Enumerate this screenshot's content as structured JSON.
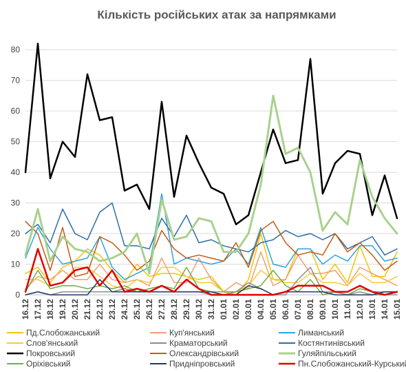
{
  "chart_data": {
    "type": "line",
    "title": "Кількість російських атак за напрямками",
    "xlabel": "",
    "ylabel": "",
    "ylim": [
      0,
      85
    ],
    "yticks": [
      0,
      10,
      20,
      30,
      40,
      50,
      60,
      70,
      80
    ],
    "grid": true,
    "legend_position": "bottom",
    "categories": [
      "16.12",
      "17.12",
      "18.12",
      "19.12",
      "20.12",
      "21.12",
      "22.12",
      "23.12",
      "24.12",
      "25.12",
      "26.12",
      "27.12",
      "28.12",
      "29.12",
      "30.12",
      "31.12",
      "01.01",
      "02.01",
      "03.01",
      "04.01",
      "05.01",
      "06.01",
      "07.01",
      "08.01",
      "09.01",
      "10.01",
      "11.01",
      "12.01",
      "13.01",
      "14.01",
      "15.01"
    ],
    "x_tick_labels": [
      "16.12",
      "17.12",
      "18.12",
      "19.12",
      "20.12",
      "21.12",
      "22.12",
      "23.12",
      "24.12",
      "25.12",
      "26.12",
      "27.12",
      "28.12",
      "29.12",
      "30.12",
      "31.12",
      "01.01",
      "02.01",
      "03.01",
      "04.01",
      "05.01",
      "06.01",
      "07.01",
      "08.01",
      "09.01",
      "10.01",
      "11.01",
      "12.01",
      "13.01",
      "14.01",
      "15.01"
    ],
    "series": [
      {
        "name": "Пд.Слобожанський",
        "color": "#f5c400",
        "width": 1.5,
        "values": [
          7,
          9,
          4,
          9,
          11,
          15,
          13,
          8,
          4,
          10,
          6,
          7,
          7,
          6,
          5,
          6,
          1,
          0,
          5,
          20,
          5,
          5,
          15,
          15,
          5,
          10,
          4,
          16,
          6,
          6,
          14
        ]
      },
      {
        "name": "Куп'янський",
        "color": "#f0a070",
        "width": 1.5,
        "values": [
          2,
          6,
          5,
          8,
          5,
          5,
          10,
          5,
          4,
          5,
          3,
          12,
          4,
          4,
          12,
          5,
          1,
          4,
          2,
          14,
          3,
          5,
          13,
          7,
          7,
          8,
          3,
          9,
          7,
          5,
          3
        ]
      },
      {
        "name": "Лиманський",
        "color": "#2ea3e0",
        "width": 1.5,
        "values": [
          12,
          22,
          15,
          10,
          11,
          12,
          19,
          9,
          5,
          7,
          9,
          33,
          10,
          12,
          11,
          10,
          11,
          15,
          10,
          22,
          10,
          9,
          15,
          15,
          10,
          13,
          11,
          16,
          16,
          11,
          12
        ]
      },
      {
        "name": "Слов'янський",
        "color": "#f2cc3a",
        "width": 1.5,
        "values": [
          5,
          5,
          3,
          4,
          9,
          9,
          6,
          3,
          2,
          5,
          4,
          9,
          9,
          6,
          4,
          4,
          1,
          1,
          3,
          8,
          5,
          4,
          4,
          7,
          4,
          4,
          3,
          7,
          4,
          4,
          6
        ]
      },
      {
        "name": "Краматорський",
        "color": "#8c8c8c",
        "width": 1.5,
        "values": [
          0,
          1,
          0,
          1,
          1,
          1,
          1,
          1,
          2,
          1,
          1,
          1,
          1,
          1,
          1,
          0,
          0,
          1,
          4,
          2,
          0,
          0,
          5,
          9,
          1,
          1,
          0,
          1,
          0,
          0,
          0
        ]
      },
      {
        "name": "Костянтинівський",
        "color": "#2e6da4",
        "width": 1.5,
        "values": [
          20,
          23,
          17,
          28,
          20,
          18,
          27,
          30,
          16,
          16,
          15,
          25,
          19,
          26,
          17,
          18,
          16,
          15,
          14,
          17,
          18,
          21,
          19,
          20,
          18,
          20,
          15,
          17,
          19,
          13,
          15
        ]
      },
      {
        "name": "Покровський",
        "color": "#000000",
        "width": 2.5,
        "values": [
          40,
          82,
          38,
          50,
          45,
          72,
          57,
          58,
          34,
          36,
          28,
          63,
          32,
          52,
          43,
          35,
          33,
          23,
          26,
          40,
          54,
          43,
          44,
          77,
          33,
          43,
          47,
          46,
          26,
          39,
          25
        ]
      },
      {
        "name": "Олександрівський",
        "color": "#c55a11",
        "width": 1.5,
        "values": [
          24,
          20,
          8,
          22,
          6,
          7,
          19,
          17,
          13,
          8,
          11,
          21,
          15,
          12,
          13,
          12,
          11,
          17,
          9,
          21,
          24,
          17,
          13,
          14,
          13,
          20,
          14,
          17,
          13,
          8,
          11
        ]
      },
      {
        "name": "Гуляйпільський",
        "color": "#a9d18e",
        "width": 3,
        "values": [
          13,
          28,
          11,
          19,
          15,
          14,
          11,
          12,
          14,
          20,
          7,
          31,
          18,
          19,
          25,
          24,
          14,
          14,
          20,
          36,
          65,
          46,
          48,
          40,
          21,
          27,
          23,
          44,
          32,
          25,
          20
        ]
      },
      {
        "name": "Оріхівський",
        "color": "#70ad47",
        "width": 1.5,
        "values": [
          1,
          8,
          2,
          3,
          3,
          2,
          3,
          2,
          3,
          1,
          2,
          3,
          2,
          9,
          2,
          1,
          1,
          1,
          2,
          3,
          8,
          3,
          1,
          5,
          0,
          1,
          0,
          2,
          1,
          1,
          1
        ]
      },
      {
        "name": "Придніпровський",
        "color": "#1f3864",
        "width": 1.5,
        "values": [
          0,
          1,
          0,
          0,
          0,
          0,
          5,
          1,
          1,
          1,
          1,
          1,
          1,
          1,
          1,
          1,
          0,
          0,
          3,
          2,
          0,
          1,
          1,
          1,
          1,
          0,
          0,
          0,
          0,
          1,
          1
        ]
      },
      {
        "name": "Пн.Слобожанський-Курський",
        "color": "#e00000",
        "width": 2.5,
        "values": [
          1,
          15,
          3,
          4,
          8,
          9,
          3,
          8,
          1,
          2,
          1,
          3,
          1,
          5,
          2,
          0,
          0,
          0,
          0,
          0,
          0,
          1,
          3,
          3,
          3,
          1,
          1,
          3,
          1,
          0,
          1
        ]
      }
    ]
  }
}
